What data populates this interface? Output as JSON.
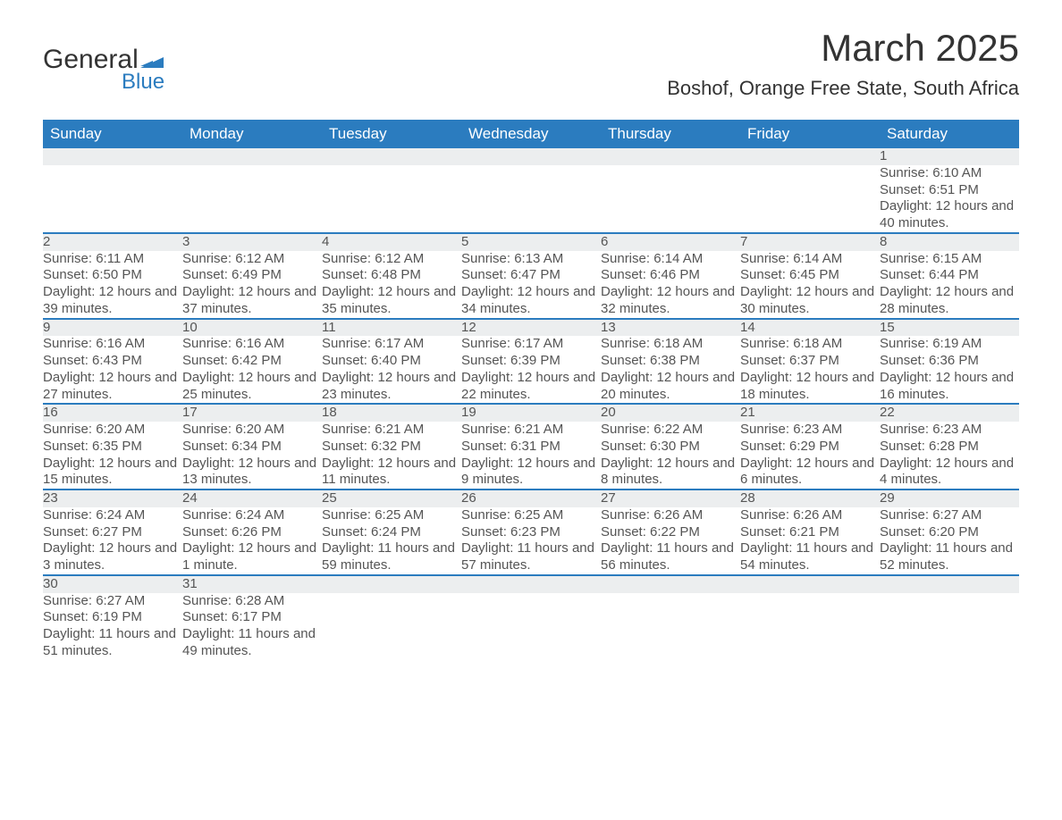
{
  "logo": {
    "word1": "General",
    "word2": "Blue",
    "flag_color": "#2b7cbf"
  },
  "title": "March 2025",
  "location": "Boshof, Orange Free State, South Africa",
  "colors": {
    "header_bg": "#2b7cbf",
    "header_text": "#ffffff",
    "daynum_bg": "#eceeef",
    "daynum_border": "#2b7cbf",
    "text": "#555555",
    "background": "#ffffff"
  },
  "calendar": {
    "days_of_week": [
      "Sunday",
      "Monday",
      "Tuesday",
      "Wednesday",
      "Thursday",
      "Friday",
      "Saturday"
    ],
    "weeks": [
      [
        null,
        null,
        null,
        null,
        null,
        null,
        {
          "n": "1",
          "sunrise": "6:10 AM",
          "sunset": "6:51 PM",
          "daylight": "12 hours and 40 minutes."
        }
      ],
      [
        {
          "n": "2",
          "sunrise": "6:11 AM",
          "sunset": "6:50 PM",
          "daylight": "12 hours and 39 minutes."
        },
        {
          "n": "3",
          "sunrise": "6:12 AM",
          "sunset": "6:49 PM",
          "daylight": "12 hours and 37 minutes."
        },
        {
          "n": "4",
          "sunrise": "6:12 AM",
          "sunset": "6:48 PM",
          "daylight": "12 hours and 35 minutes."
        },
        {
          "n": "5",
          "sunrise": "6:13 AM",
          "sunset": "6:47 PM",
          "daylight": "12 hours and 34 minutes."
        },
        {
          "n": "6",
          "sunrise": "6:14 AM",
          "sunset": "6:46 PM",
          "daylight": "12 hours and 32 minutes."
        },
        {
          "n": "7",
          "sunrise": "6:14 AM",
          "sunset": "6:45 PM",
          "daylight": "12 hours and 30 minutes."
        },
        {
          "n": "8",
          "sunrise": "6:15 AM",
          "sunset": "6:44 PM",
          "daylight": "12 hours and 28 minutes."
        }
      ],
      [
        {
          "n": "9",
          "sunrise": "6:16 AM",
          "sunset": "6:43 PM",
          "daylight": "12 hours and 27 minutes."
        },
        {
          "n": "10",
          "sunrise": "6:16 AM",
          "sunset": "6:42 PM",
          "daylight": "12 hours and 25 minutes."
        },
        {
          "n": "11",
          "sunrise": "6:17 AM",
          "sunset": "6:40 PM",
          "daylight": "12 hours and 23 minutes."
        },
        {
          "n": "12",
          "sunrise": "6:17 AM",
          "sunset": "6:39 PM",
          "daylight": "12 hours and 22 minutes."
        },
        {
          "n": "13",
          "sunrise": "6:18 AM",
          "sunset": "6:38 PM",
          "daylight": "12 hours and 20 minutes."
        },
        {
          "n": "14",
          "sunrise": "6:18 AM",
          "sunset": "6:37 PM",
          "daylight": "12 hours and 18 minutes."
        },
        {
          "n": "15",
          "sunrise": "6:19 AM",
          "sunset": "6:36 PM",
          "daylight": "12 hours and 16 minutes."
        }
      ],
      [
        {
          "n": "16",
          "sunrise": "6:20 AM",
          "sunset": "6:35 PM",
          "daylight": "12 hours and 15 minutes."
        },
        {
          "n": "17",
          "sunrise": "6:20 AM",
          "sunset": "6:34 PM",
          "daylight": "12 hours and 13 minutes."
        },
        {
          "n": "18",
          "sunrise": "6:21 AM",
          "sunset": "6:32 PM",
          "daylight": "12 hours and 11 minutes."
        },
        {
          "n": "19",
          "sunrise": "6:21 AM",
          "sunset": "6:31 PM",
          "daylight": "12 hours and 9 minutes."
        },
        {
          "n": "20",
          "sunrise": "6:22 AM",
          "sunset": "6:30 PM",
          "daylight": "12 hours and 8 minutes."
        },
        {
          "n": "21",
          "sunrise": "6:23 AM",
          "sunset": "6:29 PM",
          "daylight": "12 hours and 6 minutes."
        },
        {
          "n": "22",
          "sunrise": "6:23 AM",
          "sunset": "6:28 PM",
          "daylight": "12 hours and 4 minutes."
        }
      ],
      [
        {
          "n": "23",
          "sunrise": "6:24 AM",
          "sunset": "6:27 PM",
          "daylight": "12 hours and 3 minutes."
        },
        {
          "n": "24",
          "sunrise": "6:24 AM",
          "sunset": "6:26 PM",
          "daylight": "12 hours and 1 minute."
        },
        {
          "n": "25",
          "sunrise": "6:25 AM",
          "sunset": "6:24 PM",
          "daylight": "11 hours and 59 minutes."
        },
        {
          "n": "26",
          "sunrise": "6:25 AM",
          "sunset": "6:23 PM",
          "daylight": "11 hours and 57 minutes."
        },
        {
          "n": "27",
          "sunrise": "6:26 AM",
          "sunset": "6:22 PM",
          "daylight": "11 hours and 56 minutes."
        },
        {
          "n": "28",
          "sunrise": "6:26 AM",
          "sunset": "6:21 PM",
          "daylight": "11 hours and 54 minutes."
        },
        {
          "n": "29",
          "sunrise": "6:27 AM",
          "sunset": "6:20 PM",
          "daylight": "11 hours and 52 minutes."
        }
      ],
      [
        {
          "n": "30",
          "sunrise": "6:27 AM",
          "sunset": "6:19 PM",
          "daylight": "11 hours and 51 minutes."
        },
        {
          "n": "31",
          "sunrise": "6:28 AM",
          "sunset": "6:17 PM",
          "daylight": "11 hours and 49 minutes."
        },
        null,
        null,
        null,
        null,
        null
      ]
    ],
    "labels": {
      "sunrise": "Sunrise:",
      "sunset": "Sunset:",
      "daylight": "Daylight:"
    }
  }
}
